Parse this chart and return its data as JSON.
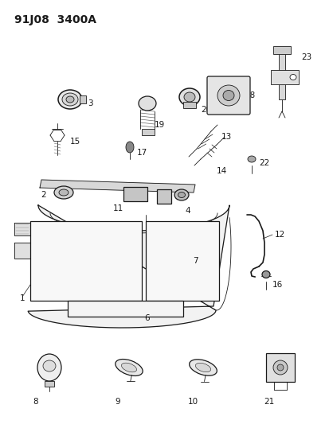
{
  "title": "91J08  3400A",
  "bg_color": "#ffffff",
  "line_color": "#1a1a1a",
  "title_fontsize": 10,
  "label_fontsize": 7.5,
  "fig_w": 4.14,
  "fig_h": 5.33,
  "dpi": 100
}
